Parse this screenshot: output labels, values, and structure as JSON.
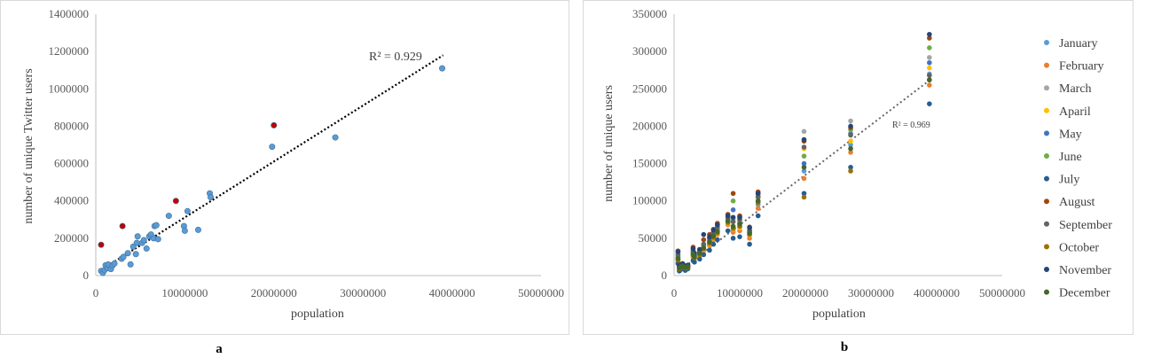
{
  "chart_data": [
    {
      "type": "scatter",
      "panel_label": "a",
      "xlabel": "population",
      "ylabel": "number of unique  Twitter  users",
      "xlim": [
        0,
        50000000
      ],
      "ylim": [
        0,
        1400000
      ],
      "x_ticks": [
        0,
        10000000,
        20000000,
        30000000,
        40000000,
        50000000
      ],
      "y_ticks": [
        0,
        200000,
        400000,
        600000,
        800000,
        1000000,
        1200000,
        1400000
      ],
      "grid": false,
      "trendline": {
        "type": "linear",
        "r2_label": "R² = 0.929",
        "x": [
          600000,
          39000000
        ],
        "y": [
          30000,
          1180000
        ]
      },
      "series": [
        {
          "color": "#5b9bd5",
          "points": [
            [
              600000,
              25000
            ],
            [
              800000,
              15000
            ],
            [
              1000000,
              30000
            ],
            [
              1100000,
              55000
            ],
            [
              1300000,
              40000
            ],
            [
              1400000,
              60000
            ],
            [
              1700000,
              35000
            ],
            [
              1900000,
              55000
            ],
            [
              2100000,
              65000
            ],
            [
              2900000,
              90000
            ],
            [
              3100000,
              100000
            ],
            [
              3600000,
              120000
            ],
            [
              3900000,
              60000
            ],
            [
              4200000,
              155000
            ],
            [
              4500000,
              115000
            ],
            [
              4600000,
              175000
            ],
            [
              4700000,
              210000
            ],
            [
              5200000,
              175000
            ],
            [
              5400000,
              190000
            ],
            [
              5700000,
              145000
            ],
            [
              6000000,
              210000
            ],
            [
              6200000,
              220000
            ],
            [
              6500000,
              200000
            ],
            [
              6600000,
              265000
            ],
            [
              6800000,
              270000
            ],
            [
              7000000,
              195000
            ],
            [
              8200000,
              320000
            ],
            [
              9900000,
              265000
            ],
            [
              10000000,
              240000
            ],
            [
              10300000,
              345000
            ],
            [
              11500000,
              245000
            ],
            [
              12800000,
              440000
            ],
            [
              12900000,
              420000
            ],
            [
              19800000,
              690000
            ],
            [
              26900000,
              740000
            ],
            [
              38900000,
              1110000
            ]
          ]
        },
        {
          "color": "#c00000",
          "points": [
            [
              600000,
              165000
            ],
            [
              3000000,
              265000
            ],
            [
              9000000,
              400000
            ],
            [
              20000000,
              805000
            ]
          ]
        }
      ]
    },
    {
      "type": "scatter",
      "panel_label": "b",
      "xlabel": "population",
      "ylabel": "number  of  unique  users",
      "xlim": [
        0,
        50000000
      ],
      "ylim": [
        0,
        350000
      ],
      "x_ticks": [
        0,
        10000000,
        20000000,
        30000000,
        40000000,
        50000000
      ],
      "y_ticks": [
        0,
        50000,
        100000,
        150000,
        200000,
        250000,
        300000,
        350000
      ],
      "grid": false,
      "legend": "right",
      "trendline": {
        "type": "linear",
        "r2_label": "R² = 0.969",
        "x": [
          600000,
          39000000
        ],
        "y": [
          5000,
          262000
        ]
      },
      "states_population": [
        600000,
        800000,
        1000000,
        1300000,
        1700000,
        2100000,
        2900000,
        3100000,
        3900000,
        4500000,
        5400000,
        6000000,
        6600000,
        8200000,
        9000000,
        10000000,
        11500000,
        12800000,
        19800000,
        26900000,
        38900000
      ],
      "series": [
        {
          "name": "January",
          "color": "#5b9bd5",
          "values": [
            22000,
            10000,
            12000,
            14000,
            11000,
            12000,
            27000,
            25000,
            30000,
            35000,
            42000,
            52000,
            58000,
            72000,
            60000,
            65000,
            55000,
            95000,
            140000,
            175000,
            270000
          ]
        },
        {
          "name": "February",
          "color": "#ed7d31",
          "values": [
            18000,
            7000,
            9000,
            12000,
            8000,
            11000,
            24000,
            22000,
            26000,
            33000,
            40000,
            48000,
            55000,
            68000,
            58000,
            60000,
            50000,
            90000,
            130000,
            165000,
            255000
          ]
        },
        {
          "name": "March",
          "color": "#a5a5a5",
          "values": [
            30000,
            12000,
            14000,
            15000,
            12000,
            13000,
            35000,
            28000,
            33000,
            42000,
            50000,
            60000,
            68000,
            80000,
            75000,
            78000,
            62000,
            110000,
            193000,
            207000,
            292000
          ]
        },
        {
          "name": "Aparil",
          "color": "#ffc000",
          "values": [
            20000,
            9000,
            11000,
            13000,
            10000,
            11000,
            26000,
            23000,
            28000,
            35000,
            42000,
            50000,
            56000,
            70000,
            62000,
            64000,
            54000,
            100000,
            170000,
            180000,
            278000
          ]
        },
        {
          "name": "May",
          "color": "#4472c4",
          "values": [
            24000,
            11000,
            12000,
            14000,
            11000,
            12000,
            30000,
            27000,
            31000,
            38000,
            46000,
            55000,
            62000,
            75000,
            88000,
            70000,
            58000,
            105000,
            150000,
            190000,
            285000
          ]
        },
        {
          "name": "June",
          "color": "#70ad47",
          "values": [
            26000,
            12000,
            13000,
            14000,
            12000,
            12000,
            32000,
            28000,
            32000,
            40000,
            48000,
            57000,
            64000,
            77000,
            100000,
            73000,
            60000,
            108000,
            160000,
            195000,
            305000
          ]
        },
        {
          "name": "July",
          "color": "#255e91",
          "values": [
            16000,
            6000,
            8000,
            10000,
            7000,
            9000,
            20000,
            18000,
            22000,
            28000,
            34000,
            42000,
            48000,
            60000,
            50000,
            52000,
            42000,
            80000,
            110000,
            145000,
            230000
          ]
        },
        {
          "name": "August",
          "color": "#9e480e",
          "values": [
            33000,
            13000,
            15000,
            16000,
            13000,
            14000,
            38000,
            30000,
            35000,
            48000,
            55000,
            62000,
            70000,
            82000,
            110000,
            80000,
            65000,
            112000,
            180000,
            198000,
            318000
          ]
        },
        {
          "name": "September",
          "color": "#636363",
          "values": [
            28000,
            12000,
            13000,
            15000,
            12000,
            13000,
            33000,
            27000,
            32000,
            42000,
            50000,
            58000,
            65000,
            78000,
            72000,
            75000,
            60000,
            105000,
            172000,
            188000,
            268000
          ]
        },
        {
          "name": "October",
          "color": "#997300",
          "values": [
            21000,
            9000,
            11000,
            13000,
            10000,
            11000,
            27000,
            24000,
            28000,
            36000,
            43000,
            51000,
            57000,
            71000,
            63000,
            66000,
            55000,
            98000,
            105000,
            140000,
            262000
          ]
        },
        {
          "name": "November",
          "color": "#264478",
          "values": [
            32000,
            13000,
            14000,
            16000,
            13000,
            14000,
            36000,
            30000,
            35000,
            55000,
            52000,
            61000,
            68000,
            80000,
            78000,
            78000,
            64000,
            110000,
            182000,
            200000,
            323000
          ]
        },
        {
          "name": "December",
          "color": "#43682b",
          "values": [
            23000,
            10000,
            12000,
            13000,
            11000,
            12000,
            29000,
            25000,
            30000,
            37000,
            45000,
            53000,
            59000,
            73000,
            66000,
            69000,
            57000,
            100000,
            145000,
            170000,
            262000
          ]
        }
      ]
    }
  ]
}
